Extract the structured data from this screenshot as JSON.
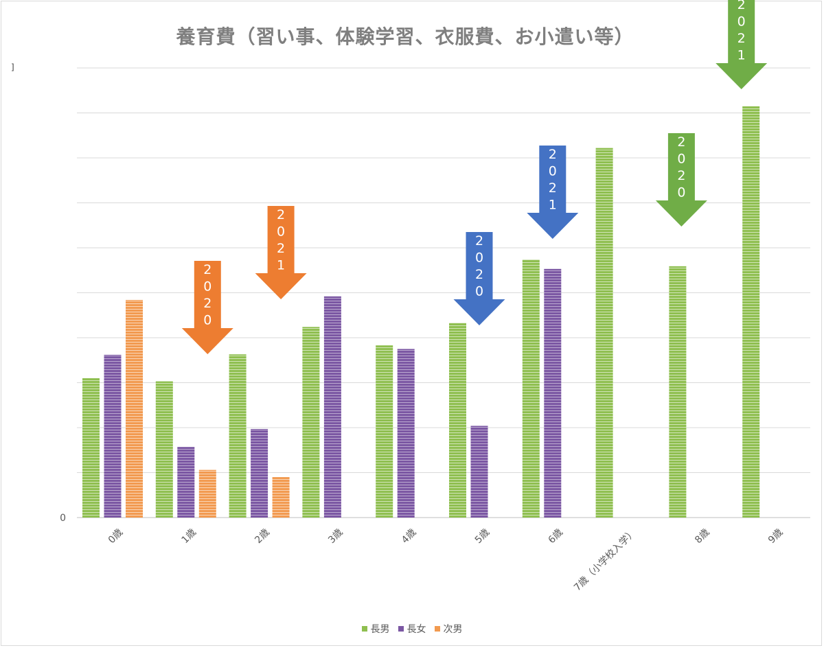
{
  "chart_data": {
    "type": "bar",
    "title": "養育費（習い事、体験学習、衣服費、お小遣い等）",
    "ylabel": "",
    "xlabel": "",
    "y_tick_labels": [
      "0"
    ],
    "ylim": [
      0,
      10
    ],
    "grid": true,
    "legend_position": "bottom",
    "categories": [
      "0歳",
      "1歳",
      "2歳",
      "3歳",
      "4歳",
      "5歳",
      "6歳",
      "7歳（小学校入学）",
      "8歳",
      "9歳"
    ],
    "series": [
      {
        "name": "長男",
        "color": "#8fbf50",
        "values": [
          3.1,
          3.03,
          3.63,
          4.24,
          3.83,
          4.33,
          5.74,
          8.22,
          5.59,
          9.15
        ]
      },
      {
        "name": "長女",
        "color": "#7b57a3",
        "values": [
          3.62,
          1.57,
          1.97,
          4.92,
          3.75,
          2.04,
          5.53,
          null,
          null,
          null
        ]
      },
      {
        "name": "次男",
        "color": "#f29a50",
        "values": [
          4.84,
          1.06,
          0.9,
          null,
          null,
          null,
          null,
          null,
          null,
          null
        ]
      }
    ],
    "annotations": [
      {
        "text": "2020",
        "color": "#ed7d31",
        "category": "1歳"
      },
      {
        "text": "2021",
        "color": "#ed7d31",
        "category": "2歳"
      },
      {
        "text": "2020",
        "color": "#4472c4",
        "category": "5歳"
      },
      {
        "text": "2021",
        "color": "#4472c4",
        "category": "6歳"
      },
      {
        "text": "2020",
        "color": "#70ad47",
        "category": "8歳"
      },
      {
        "text": "2021",
        "color": "#70ad47",
        "category": "9歳"
      }
    ],
    "stray_mark": "]"
  }
}
